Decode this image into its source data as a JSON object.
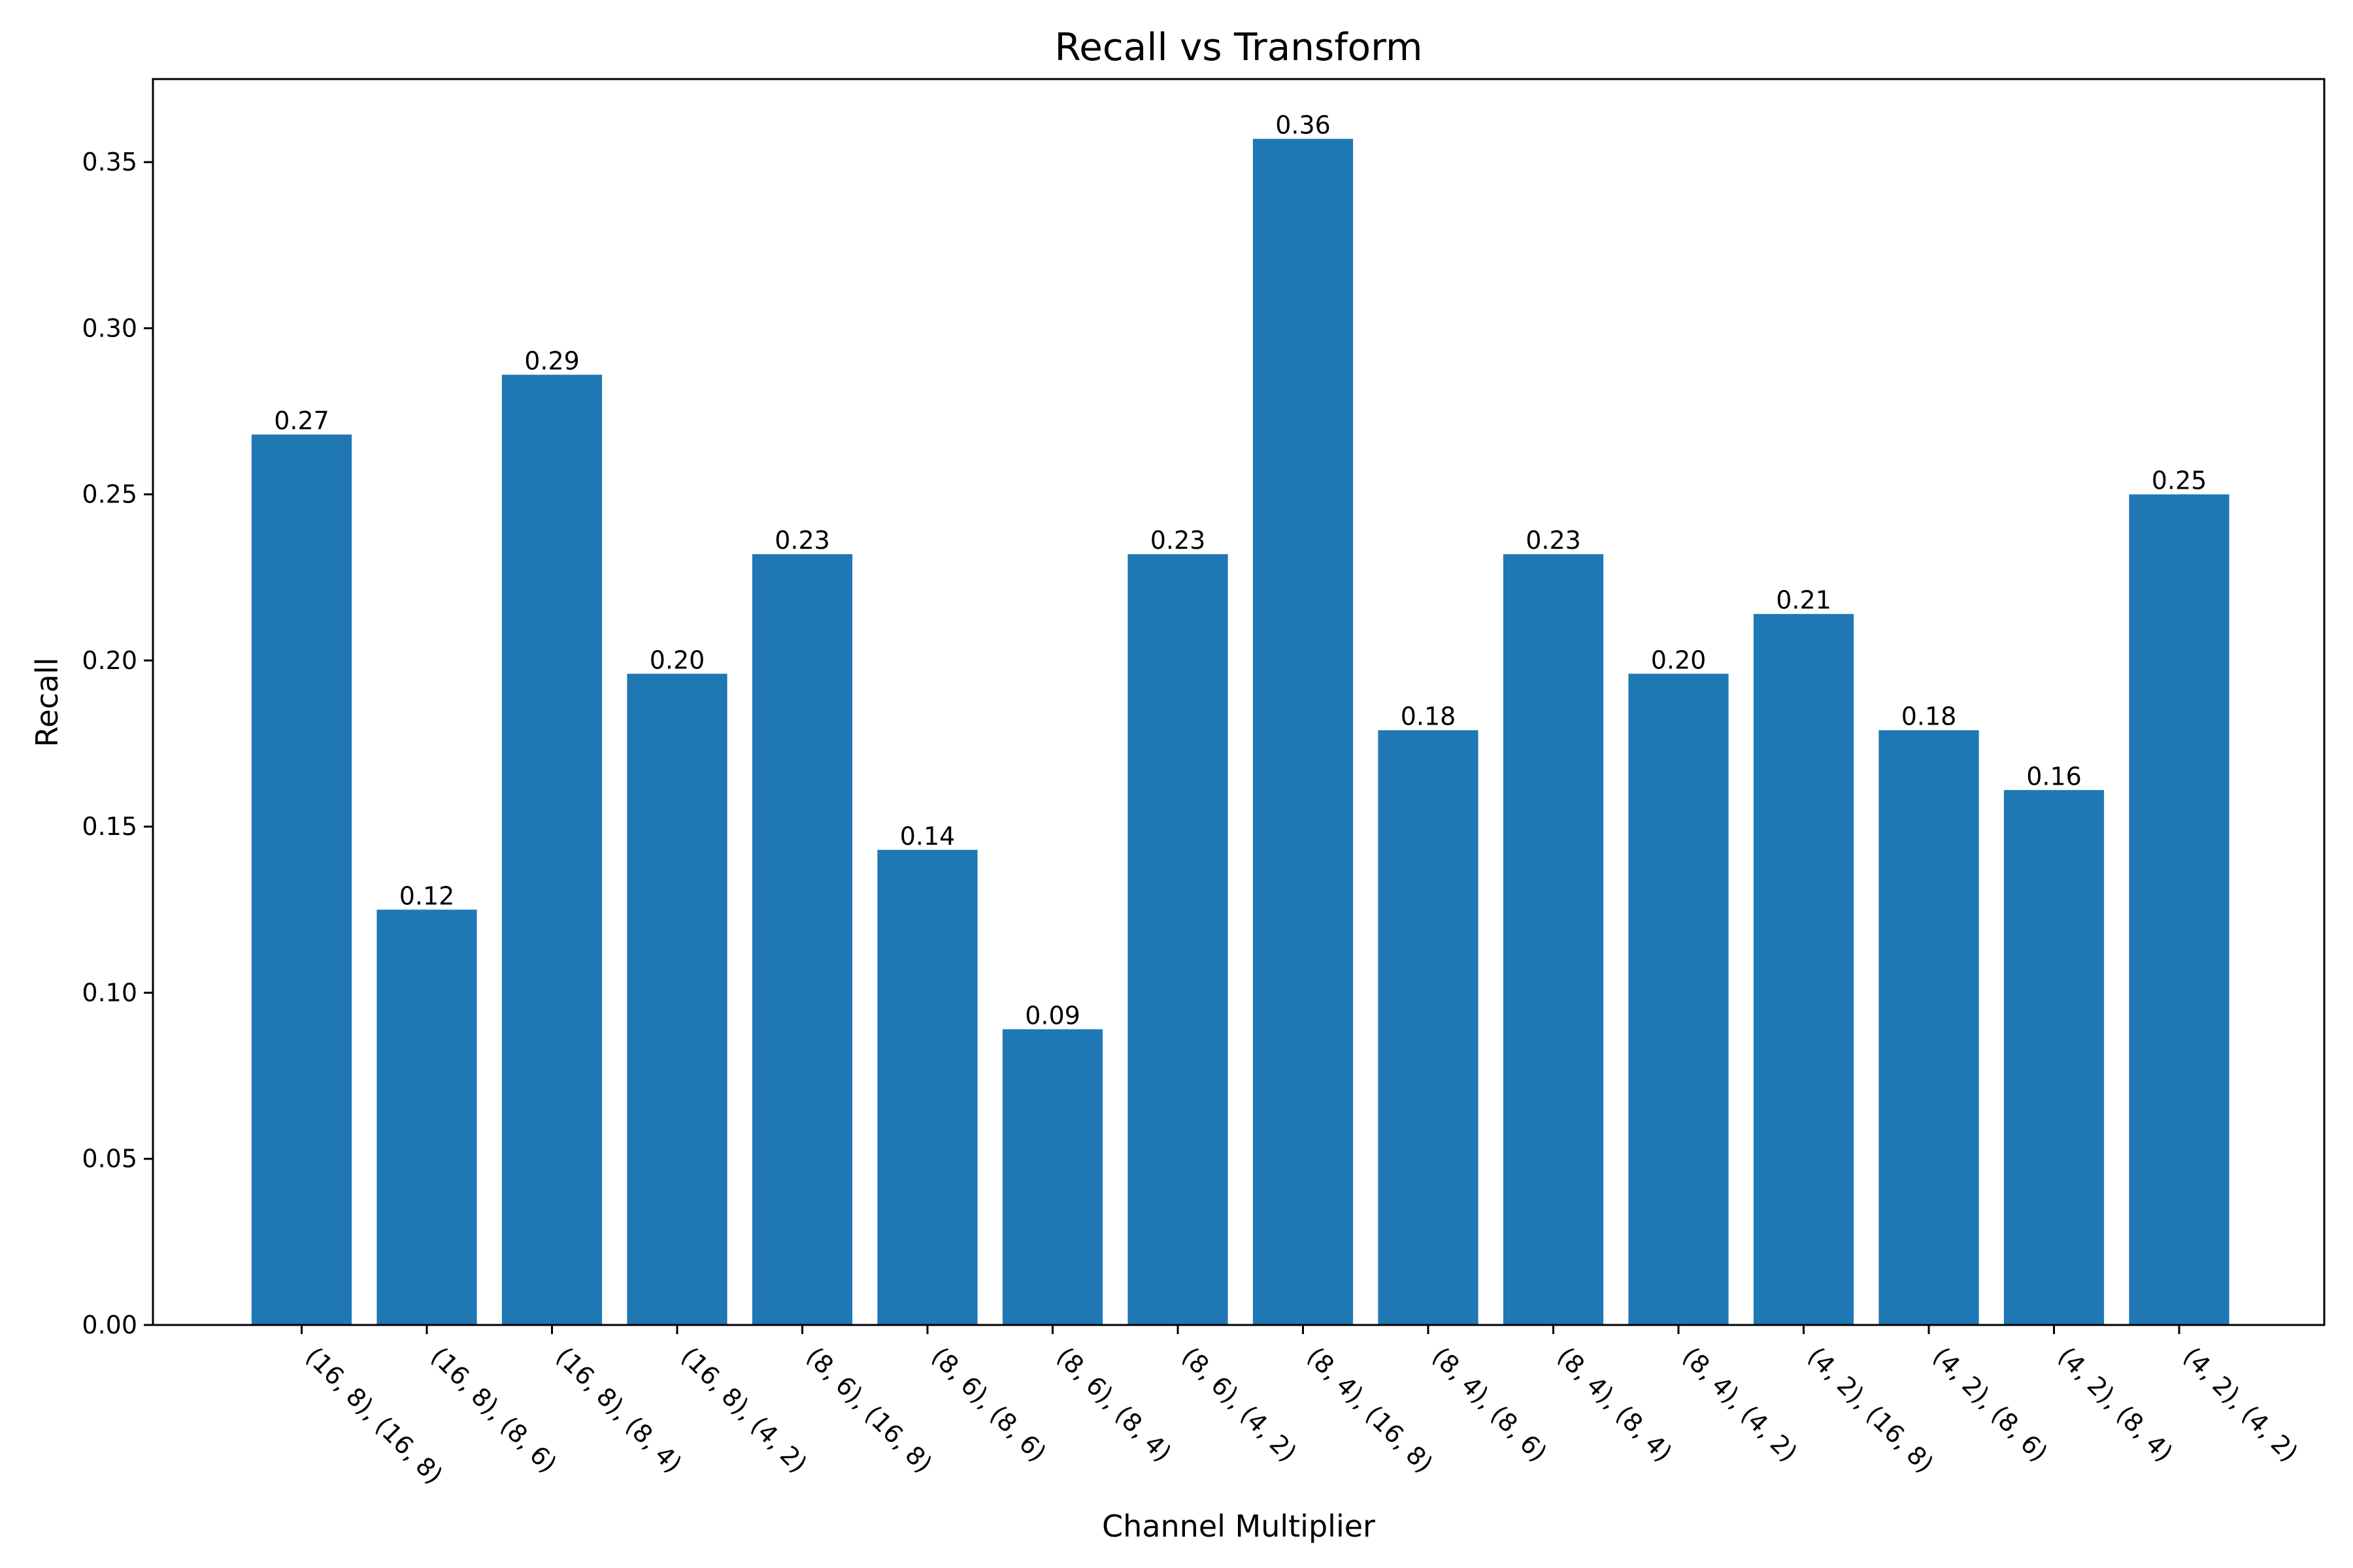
{
  "chart_data": {
    "type": "bar",
    "title": "Recall vs Transform",
    "xlabel": "Channel Multiplier",
    "ylabel": "Recall",
    "categories": [
      "(16, 8), (16, 8)",
      "(16, 8), (8, 6)",
      "(16, 8), (8, 4)",
      "(16, 8), (4, 2)",
      "(8, 6), (16, 8)",
      "(8, 6), (8, 6)",
      "(8, 6), (8, 4)",
      "(8, 6), (4, 2)",
      "(8, 4), (16, 8)",
      "(8, 4), (8, 6)",
      "(8, 4), (8, 4)",
      "(8, 4), (4, 2)",
      "(4, 2), (16, 8)",
      "(4, 2), (8, 6)",
      "(4, 2), (8, 4)",
      "(4, 2), (4, 2)"
    ],
    "values": [
      0.268,
      0.125,
      0.286,
      0.196,
      0.232,
      0.143,
      0.089,
      0.232,
      0.357,
      0.179,
      0.232,
      0.196,
      0.214,
      0.179,
      0.161,
      0.25
    ],
    "value_labels": [
      "0.27",
      "0.12",
      "0.29",
      "0.20",
      "0.23",
      "0.14",
      "0.09",
      "0.23",
      "0.36",
      "0.18",
      "0.23",
      "0.20",
      "0.21",
      "0.18",
      "0.16",
      "0.25"
    ],
    "yticks": [
      "0.00",
      "0.05",
      "0.10",
      "0.15",
      "0.20",
      "0.25",
      "0.30",
      "0.35"
    ],
    "ylim": [
      0,
      0.375
    ],
    "grid": false,
    "bar_color": "#1f77b4"
  }
}
